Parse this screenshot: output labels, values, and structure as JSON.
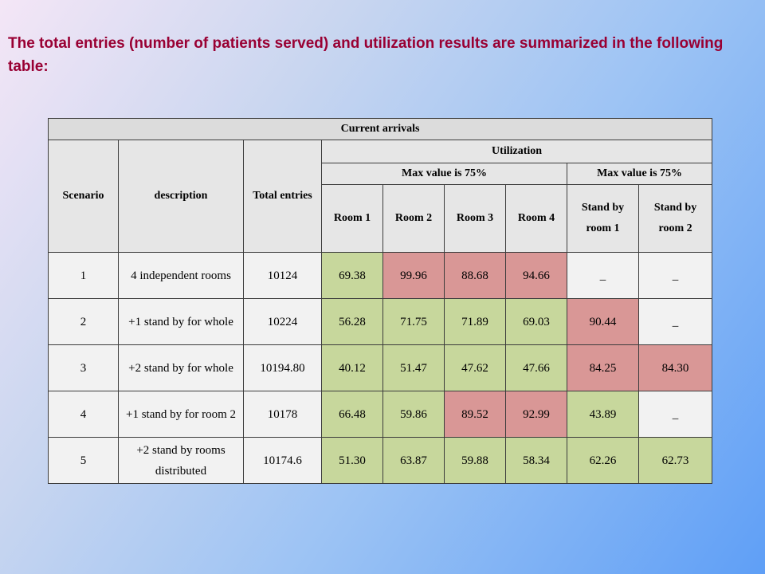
{
  "heading": "The total entries (number of patients served) and utilization results are summarized in the following table:",
  "table": {
    "group_header": "Current arrivals",
    "col_scenario": "Scenario",
    "col_description": "description",
    "col_total": "Total entries",
    "utilization": "Utilization",
    "max_left": "Max value is 75%",
    "max_right": "Max value is 75%",
    "room1": "Room 1",
    "room2": "Room 2",
    "room3": "Room 3",
    "room4": "Room 4",
    "standby1": "Stand by room 1",
    "standby2": "Stand by room 2",
    "rows": [
      {
        "scenario": "1",
        "description": "4 independent rooms",
        "total": "10124",
        "room1": "69.38",
        "room2": "99.96",
        "room3": "88.68",
        "room4": "94.66",
        "sb1": "_",
        "sb2": "_"
      },
      {
        "scenario": "2",
        "description": "+1 stand by for whole",
        "total": "10224",
        "room1": "56.28",
        "room2": "71.75",
        "room3": "71.89",
        "room4": "69.03",
        "sb1": "90.44",
        "sb2": "_"
      },
      {
        "scenario": "3",
        "description": "+2 stand by for whole",
        "total": "10194.80",
        "room1": "40.12",
        "room2": "51.47",
        "room3": "47.62",
        "room4": "47.66",
        "sb1": "84.25",
        "sb2": "84.30"
      },
      {
        "scenario": "4",
        "description": "+1 stand by for room 2",
        "total": "10178",
        "room1": "66.48",
        "room2": "59.86",
        "room3": "89.52",
        "room4": "92.99",
        "sb1": "43.89",
        "sb2": "_"
      },
      {
        "scenario": "5",
        "description": "+2 stand by rooms distributed",
        "total": "10174.6",
        "room1": "51.30",
        "room2": "63.87",
        "room3": "59.88",
        "room4": "58.34",
        "sb1": "62.26",
        "sb2": "62.73"
      }
    ]
  },
  "colors": {
    "heading_text": "#990033",
    "under_limit": "#c7d79c",
    "over_limit": "#d99796",
    "header_bg": "#e6e6e6",
    "plain_bg": "#f2f2f2"
  }
}
